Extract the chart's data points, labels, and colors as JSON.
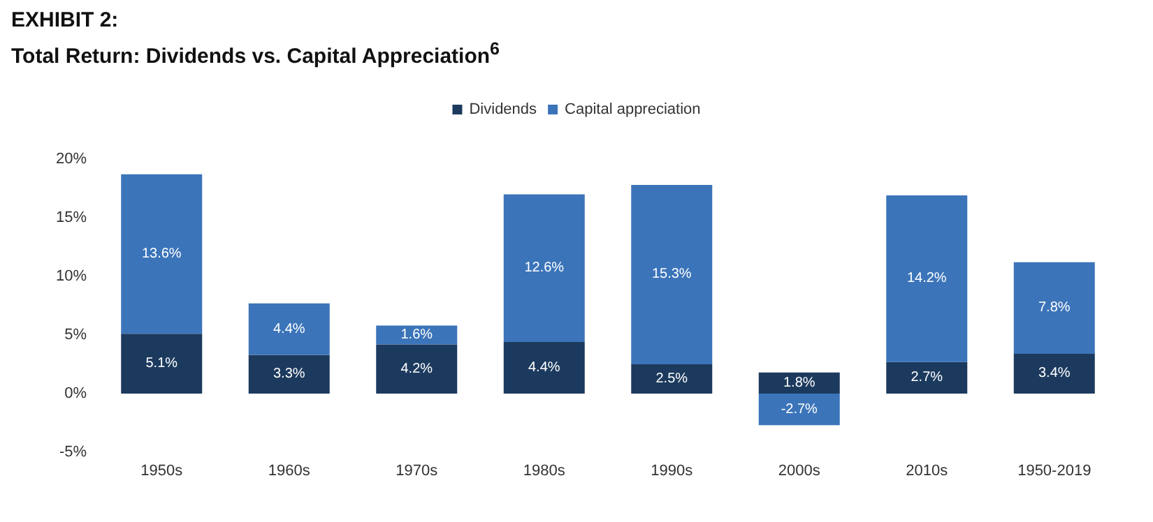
{
  "chart_data": {
    "type": "bar",
    "title": "EXHIBIT 2:",
    "subtitle": "Total Return: Dividends vs. Capital Appreciation$^{6}$",
    "categories": [
      "1950s",
      "1960s",
      "1970s",
      "1980s",
      "1990s",
      "2000s",
      "2010s",
      "1950-2019"
    ],
    "stacked": true,
    "series": [
      {
        "name": "Dividends",
        "color": "#1c3a5e",
        "values": [
          5.1,
          3.3,
          4.2,
          4.4,
          2.5,
          1.8,
          2.7,
          3.4
        ],
        "value_labels": [
          "5.1%",
          "3.3%",
          "4.2%",
          "4.4%",
          "2.5%",
          "1.8%",
          "2.7%",
          "3.4%"
        ]
      },
      {
        "name": "Capital appreciation",
        "color": "#3b74b9",
        "values": [
          13.6,
          4.4,
          1.6,
          12.6,
          15.3,
          -2.7,
          14.2,
          7.8
        ],
        "value_labels": [
          "13.6%",
          "4.4%",
          "1.6%",
          "12.6%",
          "15.3%",
          "-2.7%",
          "14.2%",
          "7.8%"
        ]
      }
    ],
    "ylim": [
      -5,
      20
    ],
    "yticks": [
      {
        "value": -5,
        "label": "-5%"
      },
      {
        "value": 0,
        "label": "0%"
      },
      {
        "value": 5,
        "label": "5%"
      },
      {
        "value": 10,
        "label": "10%"
      },
      {
        "value": 15,
        "label": "15%"
      },
      {
        "value": 20,
        "label": "20%"
      }
    ],
    "grid": false,
    "legend": "top"
  }
}
